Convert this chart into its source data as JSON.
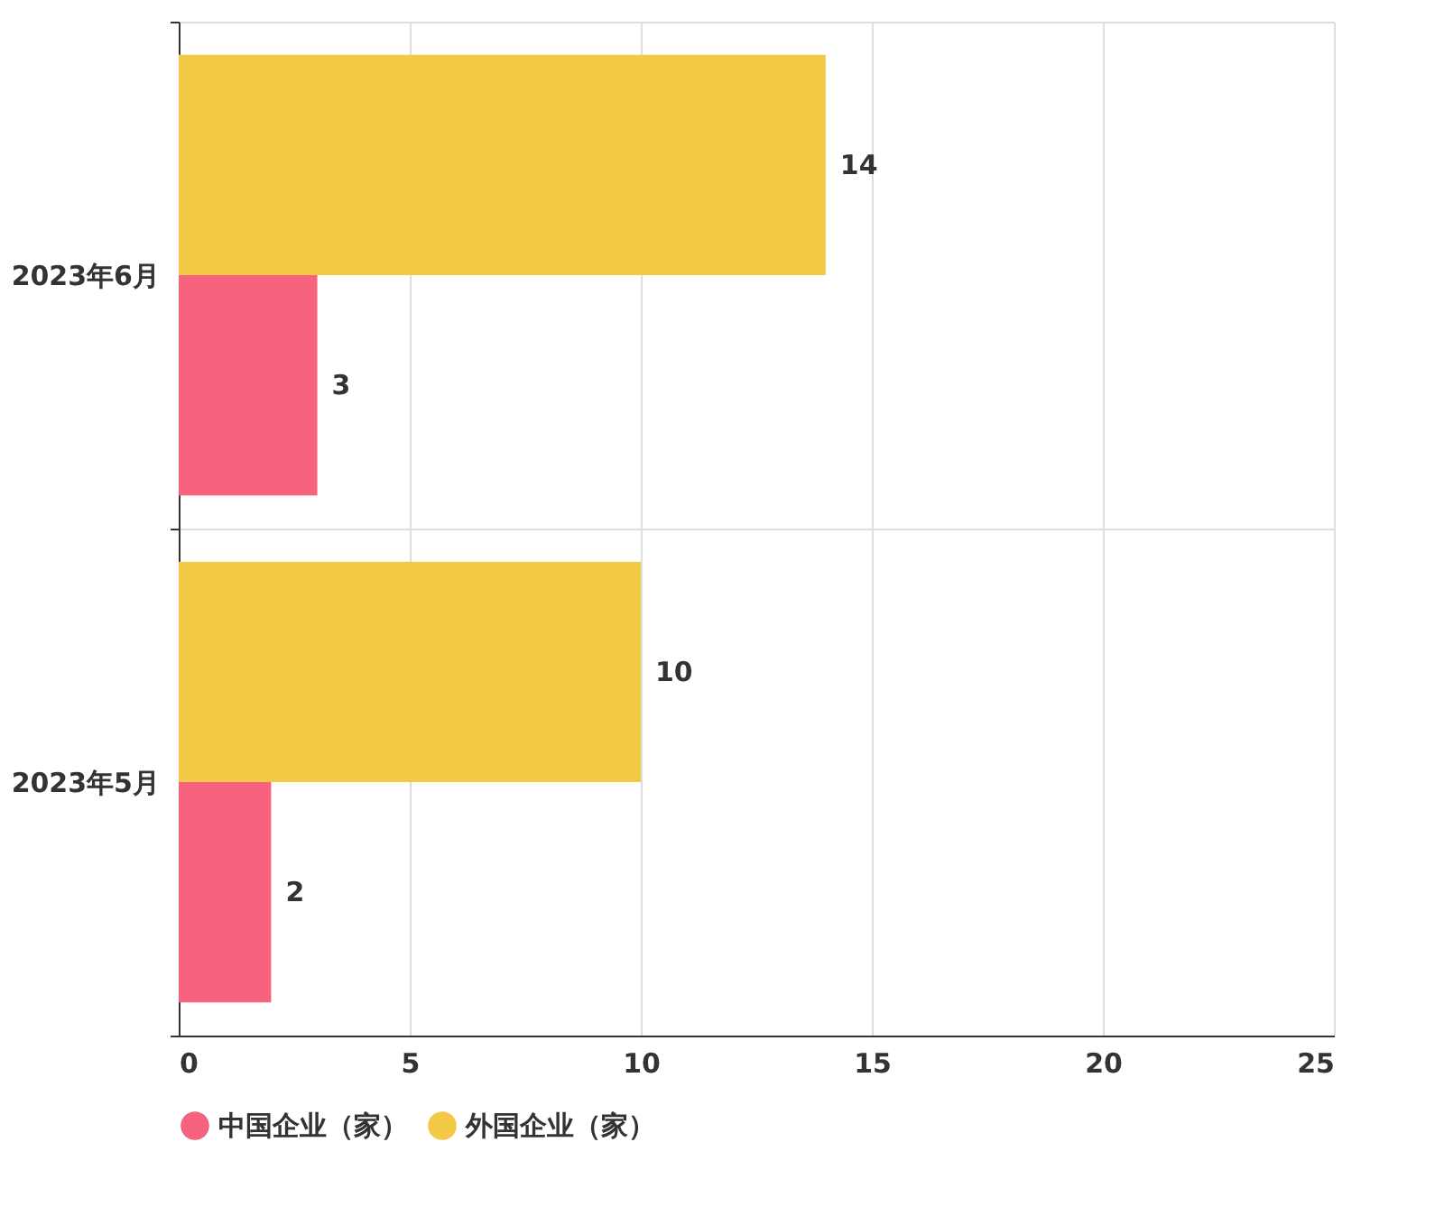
{
  "chart_data": {
    "type": "bar",
    "orientation": "horizontal",
    "categories": [
      "2023年6月",
      "2023年5月"
    ],
    "series": [
      {
        "name": "中国企业（家）",
        "color": "#f7637f",
        "values": [
          3,
          2
        ]
      },
      {
        "name": "外国企业（家）",
        "color": "#f2ca45",
        "values": [
          14,
          10
        ]
      }
    ],
    "xlim": [
      0,
      25
    ],
    "xticks": [
      0,
      5,
      10,
      15,
      20,
      25
    ],
    "grid": true,
    "legend": "bottom",
    "data_labels": true
  }
}
